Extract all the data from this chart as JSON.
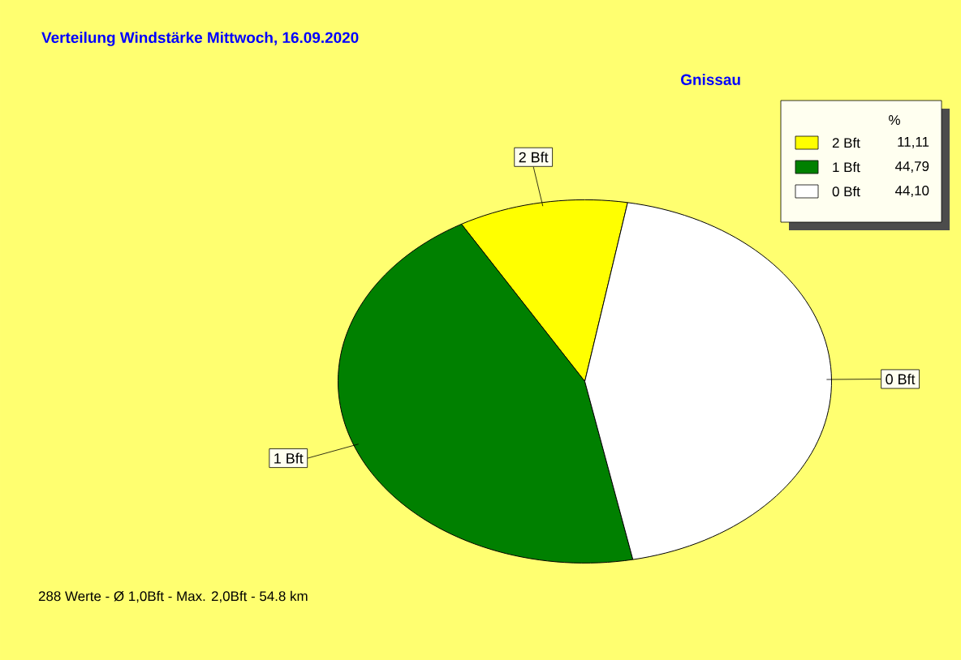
{
  "chart_data": {
    "type": "pie",
    "title": "Verteilung Windstärke  Mittwoch, 16.09.2020",
    "subtitle": "Gnissau",
    "categories": [
      "2 Bft",
      "1 Bft",
      "0 Bft"
    ],
    "values": [
      11.11,
      44.79,
      44.1
    ],
    "value_labels": [
      "11,11",
      "44,79",
      "44,10"
    ],
    "colors": [
      "#ffff00",
      "#008000",
      "#ffffff"
    ],
    "legend": "top right",
    "legend_title": "%",
    "annotations": [
      "288 Werte   -   Ø 1,0Bft  -  Max. 2,0Bft   -   54.8 km"
    ]
  }
}
